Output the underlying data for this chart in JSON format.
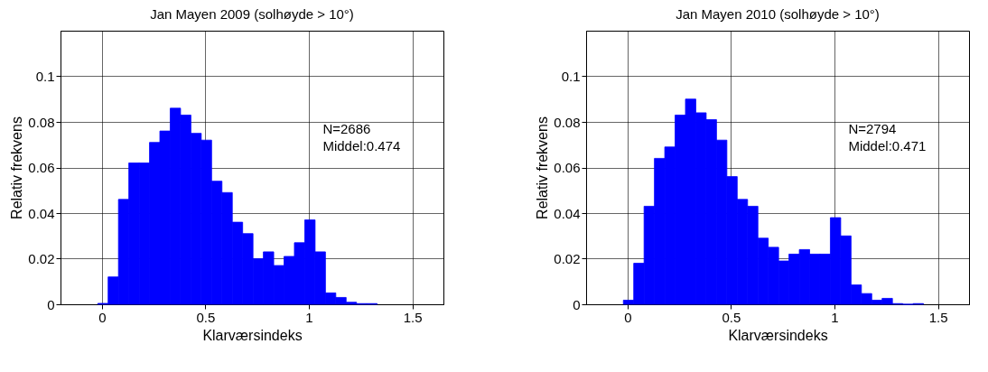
{
  "chart_data": [
    {
      "type": "histogram",
      "title": "Jan Mayen 2009 (solhøyde > 10°)",
      "xlabel": "Klarværsindeks",
      "ylabel": "Relativ frekvens",
      "color": "#0000ff",
      "grid": true,
      "bins": [
        -0.02,
        0.03,
        0.08,
        0.13,
        0.18,
        0.23,
        0.28,
        0.33,
        0.38,
        0.43,
        0.48,
        0.53,
        0.58,
        0.63,
        0.68,
        0.73,
        0.78,
        0.83,
        0.88,
        0.93,
        0.98,
        1.03,
        1.08,
        1.13,
        1.18,
        1.23,
        1.28,
        1.33
      ],
      "values": [
        0.0004,
        0.012,
        0.046,
        0.062,
        0.062,
        0.071,
        0.076,
        0.086,
        0.083,
        0.075,
        0.072,
        0.054,
        0.049,
        0.036,
        0.031,
        0.02,
        0.023,
        0.017,
        0.021,
        0.027,
        0.037,
        0.023,
        0.005,
        0.003,
        0.0009,
        0.0003,
        0.0003
      ],
      "xlim": [
        -0.2,
        1.65
      ],
      "xticks": [
        0,
        0.5,
        1,
        1.5
      ],
      "ylim": [
        0,
        0.12
      ],
      "yticks": [
        0,
        0.02,
        0.04,
        0.06,
        0.08,
        0.1
      ],
      "annotations": [
        "N=2686",
        "Middel:0.474"
      ]
    },
    {
      "type": "histogram",
      "title": "Jan Mayen 2010 (solhøyde > 10°)",
      "xlabel": "Klarværsindeks",
      "ylabel": "Relativ frekvens",
      "color": "#0000ff",
      "grid": true,
      "bins": [
        -0.02,
        0.03,
        0.08,
        0.13,
        0.18,
        0.23,
        0.28,
        0.33,
        0.38,
        0.43,
        0.48,
        0.53,
        0.58,
        0.63,
        0.68,
        0.73,
        0.78,
        0.83,
        0.88,
        0.93,
        0.98,
        1.03,
        1.08,
        1.13,
        1.18,
        1.23,
        1.28,
        1.33,
        1.38,
        1.43
      ],
      "values": [
        0.0018,
        0.018,
        0.043,
        0.064,
        0.069,
        0.083,
        0.09,
        0.084,
        0.081,
        0.072,
        0.056,
        0.046,
        0.043,
        0.029,
        0.025,
        0.019,
        0.022,
        0.024,
        0.022,
        0.022,
        0.038,
        0.03,
        0.0085,
        0.0047,
        0.0018,
        0.0026,
        0.0003,
        0,
        0.0003
      ],
      "xlim": [
        -0.2,
        1.65
      ],
      "xticks": [
        0,
        0.5,
        1,
        1.5
      ],
      "ylim": [
        0,
        0.12
      ],
      "yticks": [
        0,
        0.02,
        0.04,
        0.06,
        0.08,
        0.1
      ],
      "annotations": [
        "N=2794",
        "Middel:0.471"
      ]
    }
  ]
}
